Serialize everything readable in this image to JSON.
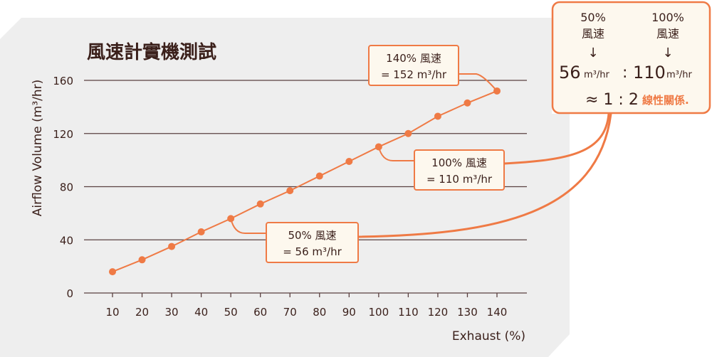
{
  "colors": {
    "accent": "#ef7a45",
    "text": "#3a1f1a",
    "grid": "#5a4040",
    "card": "#eeeeee",
    "box": "#fdf8ee"
  },
  "chart_data": {
    "type": "line",
    "title": "風速計實機測試",
    "xlabel": "Exhaust (%)",
    "ylabel": "Airflow Volume (m³/hr)",
    "x": [
      10,
      20,
      30,
      40,
      50,
      60,
      70,
      80,
      90,
      100,
      110,
      120,
      130,
      140
    ],
    "y": [
      16,
      25,
      35,
      46,
      56,
      67,
      77,
      88,
      99,
      110,
      120,
      133,
      143,
      152
    ],
    "xlim": [
      0,
      150
    ],
    "ylim": [
      0,
      160
    ],
    "xticks": [
      "10",
      "20",
      "30",
      "40",
      "50",
      "60",
      "70",
      "80",
      "90",
      "100",
      "110",
      "120",
      "130",
      "140"
    ],
    "yticks": [
      "0",
      "40",
      "80",
      "120",
      "160"
    ],
    "yticks_values": [
      0,
      40,
      80,
      120,
      160
    ],
    "grid": true,
    "annotations": [
      {
        "x": 140,
        "line1": "140% 風速",
        "line2": "= 152 m³/hr"
      },
      {
        "x": 100,
        "line1": "100% 風速",
        "line2": "= 110 m³/hr"
      },
      {
        "x": 50,
        "line1": "50% 風速",
        "line2": "= 56 m³/hr"
      }
    ]
  },
  "summary": {
    "left_label_1": "50%",
    "left_label_2": "風速",
    "right_label_1": "100%",
    "right_label_2": "風速",
    "arrow": "↓",
    "left_value": "56",
    "right_value": "110",
    "unit": "m³/hr",
    "colon": ":",
    "ratio": "≈ 1 : 2",
    "conclusion": "線性關係."
  }
}
